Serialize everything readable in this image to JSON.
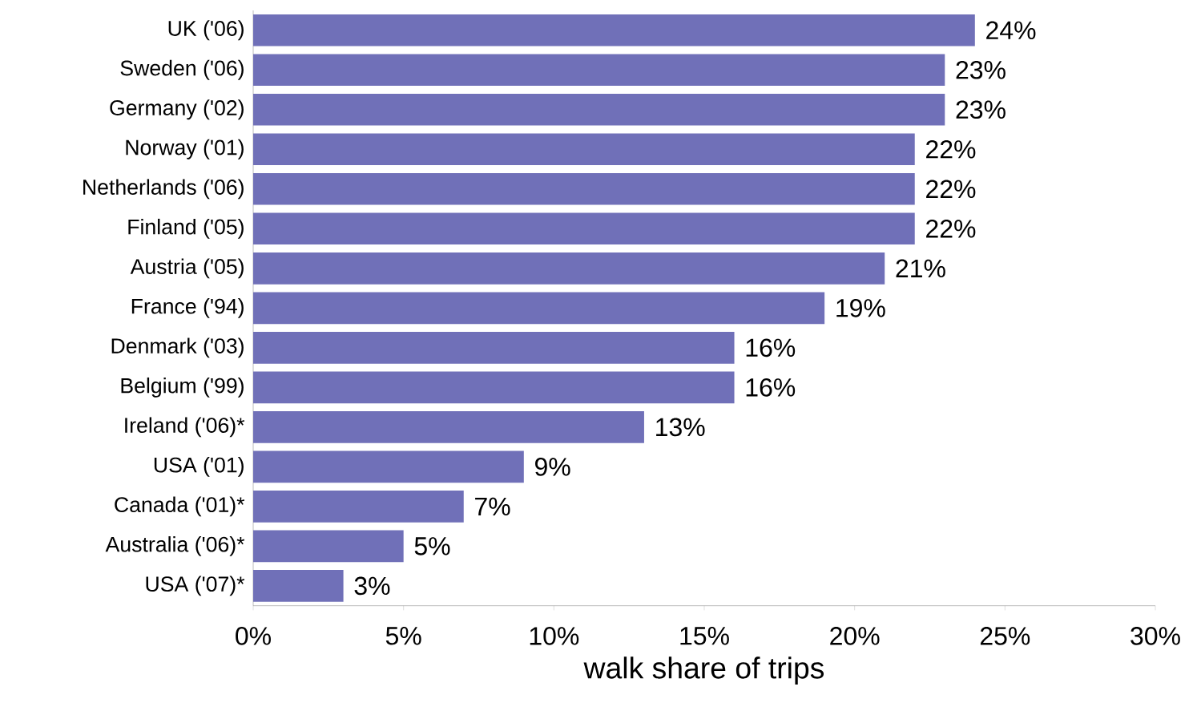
{
  "chart_data": {
    "type": "bar",
    "orientation": "horizontal",
    "xlabel": "walk share of trips",
    "categories": [
      "UK ('06)",
      "Sweden ('06)",
      "Germany ('02)",
      "Norway ('01)",
      "Netherlands ('06)",
      "Finland ('05)",
      "Austria ('05)",
      "France ('94)",
      "Denmark ('03)",
      "Belgium ('99)",
      "Ireland ('06)*",
      "USA ('01)",
      "Canada ('01)*",
      "Australia ('06)*",
      "USA ('07)*"
    ],
    "values": [
      24,
      23,
      23,
      22,
      22,
      22,
      21,
      19,
      16,
      16,
      13,
      9,
      7,
      5,
      3
    ],
    "value_labels": [
      "24%",
      "23%",
      "23%",
      "22%",
      "22%",
      "22%",
      "21%",
      "19%",
      "16%",
      "16%",
      "13%",
      "9%",
      "7%",
      "5%",
      "3%"
    ],
    "color": "#7070b8",
    "xlim": [
      0,
      30
    ],
    "xticks": [
      {
        "value": 0,
        "label": "0%"
      },
      {
        "value": 5,
        "label": "5%"
      },
      {
        "value": 10,
        "label": "10%"
      },
      {
        "value": 15,
        "label": "15%"
      },
      {
        "value": 20,
        "label": "20%"
      },
      {
        "value": 25,
        "label": "25%"
      },
      {
        "value": 30,
        "label": "30%"
      }
    ],
    "grid": false
  }
}
